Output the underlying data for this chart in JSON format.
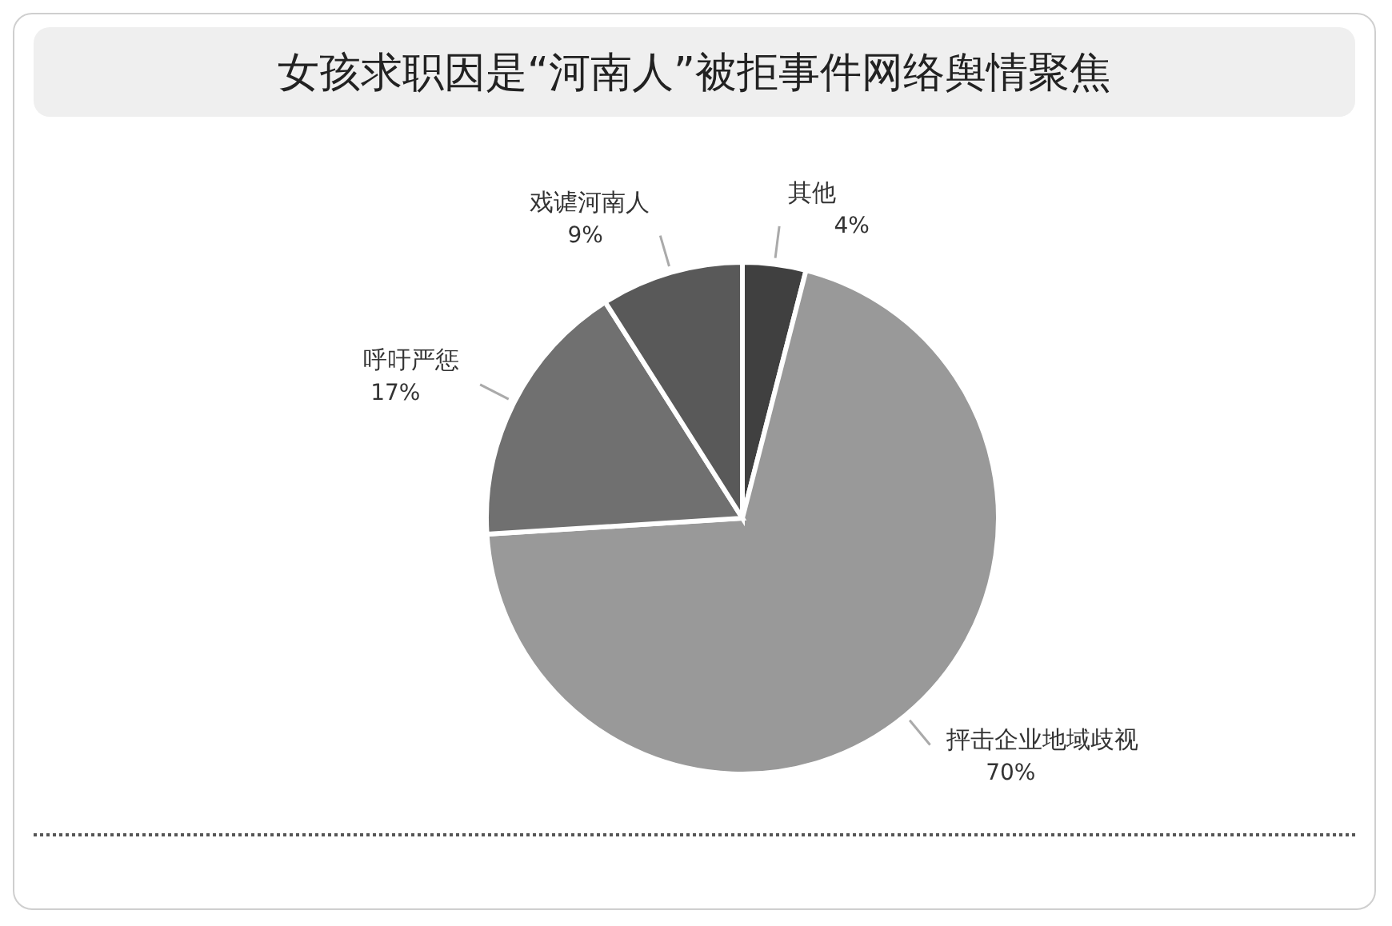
{
  "chart_data": {
    "type": "pie",
    "title": "女孩求职因是“河南人”被拒事件网络舆情聚焦",
    "categories": [
      "其他",
      "抨击企业地域歧视",
      "呼吁严惩",
      "戏谑河南人"
    ],
    "values": [
      4,
      70,
      17,
      9
    ],
    "value_labels": [
      "4%",
      "70%",
      "17%",
      "9%"
    ],
    "colors": [
      "#404040",
      "#999999",
      "#707070",
      "#595959"
    ]
  }
}
